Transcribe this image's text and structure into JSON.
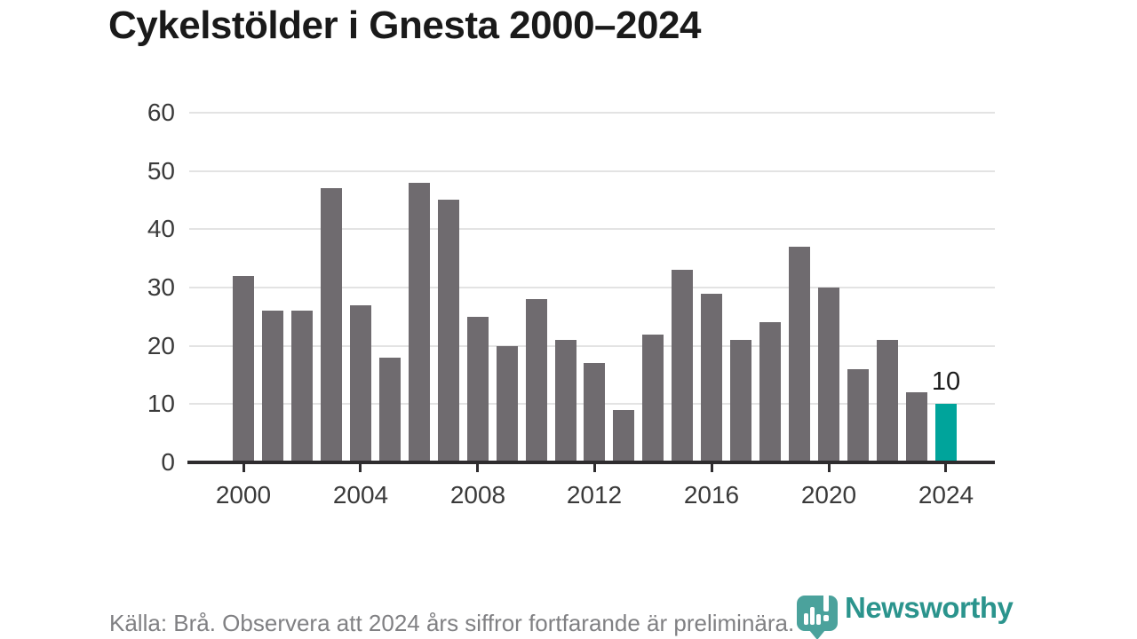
{
  "title": "Cykelstölder i Gnesta 2000–2024",
  "footer": {
    "source_note": "Källa: Brå. Observera att 2024 års siffror fortfarande är preliminära."
  },
  "logo": {
    "brand": "Newsworthy"
  },
  "colors": {
    "title": "#1a1a1a",
    "bar_default": "#6f6b6f",
    "bar_highlight": "#00a49b",
    "axis_line": "#2e2c2e",
    "gridline": "#e3e3e3",
    "tick_label": "#3a3a3a",
    "value_label": "#1a1a1a",
    "source_text": "#808083",
    "logo_icon": "#4ba29c",
    "logo_text": "#2b948d"
  },
  "chart_data": {
    "type": "bar",
    "title": "Cykelstölder i Gnesta 2000–2024",
    "categories": [
      2000,
      2001,
      2002,
      2003,
      2004,
      2005,
      2006,
      2007,
      2008,
      2009,
      2010,
      2011,
      2012,
      2013,
      2014,
      2015,
      2016,
      2017,
      2018,
      2019,
      2020,
      2021,
      2022,
      2023,
      2024
    ],
    "values": [
      32,
      26,
      26,
      47,
      27,
      18,
      48,
      45,
      25,
      20,
      28,
      21,
      17,
      9,
      22,
      33,
      29,
      21,
      24,
      37,
      30,
      16,
      21,
      12,
      10
    ],
    "xlabel": "",
    "ylabel": "",
    "ylim": [
      0,
      60
    ],
    "yticks": [
      0,
      10,
      20,
      30,
      40,
      50,
      60
    ],
    "xticks": [
      2000,
      2004,
      2008,
      2012,
      2016,
      2020,
      2024
    ],
    "grid": true,
    "legend": false,
    "highlight": {
      "index": 24,
      "category": 2024,
      "value": 10,
      "label": "10"
    }
  }
}
